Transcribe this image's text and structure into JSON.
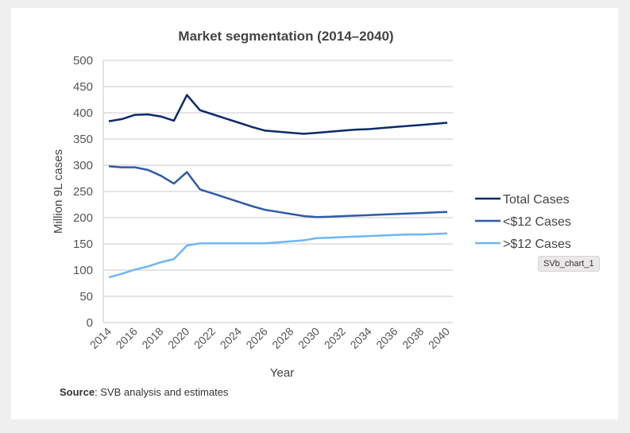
{
  "chart_data": {
    "type": "line",
    "title": "Market segmentation (2014–2040)",
    "xlabel": "Year",
    "ylabel": "Million 9L cases",
    "ylim": [
      0,
      500
    ],
    "yticks": [
      0,
      50,
      100,
      150,
      200,
      250,
      300,
      350,
      400,
      450,
      500
    ],
    "xticks": [
      2014,
      2016,
      2018,
      2020,
      2022,
      2024,
      2026,
      2028,
      2030,
      2032,
      2034,
      2036,
      2038,
      2040
    ],
    "x": [
      2014,
      2015,
      2016,
      2017,
      2018,
      2019,
      2020,
      2021,
      2022,
      2023,
      2024,
      2025,
      2026,
      2027,
      2028,
      2029,
      2030,
      2031,
      2032,
      2033,
      2034,
      2035,
      2036,
      2037,
      2038,
      2039,
      2040
    ],
    "grid": true,
    "legend_position": "right",
    "series": [
      {
        "name": "Total Cases",
        "color": "#0b2a6b",
        "values": [
          384,
          388,
          396,
          397,
          393,
          385,
          434,
          405,
          397,
          389,
          381,
          373,
          366,
          364,
          362,
          360,
          362,
          364,
          366,
          368,
          369,
          371,
          373,
          375,
          377,
          379,
          381
        ]
      },
      {
        "name": "<$12 Cases",
        "color": "#2f5aaa",
        "values": [
          298,
          296,
          296,
          291,
          280,
          265,
          287,
          254,
          246,
          238,
          230,
          222,
          215,
          211,
          207,
          203,
          201,
          202,
          203,
          204,
          205,
          206,
          207,
          208,
          209,
          210,
          211
        ]
      },
      {
        "name": ">$12 Cases",
        "color": "#6fb6f5",
        "values": [
          86,
          93,
          101,
          107,
          115,
          121,
          147,
          151,
          151,
          151,
          151,
          151,
          151,
          153,
          155,
          157,
          161,
          162,
          163,
          164,
          165,
          166,
          167,
          168,
          168,
          169,
          170
        ]
      }
    ]
  },
  "source": {
    "label": "Source",
    "text": ": SVB analysis and estimates"
  },
  "tooltip": "SVb_chart_1"
}
